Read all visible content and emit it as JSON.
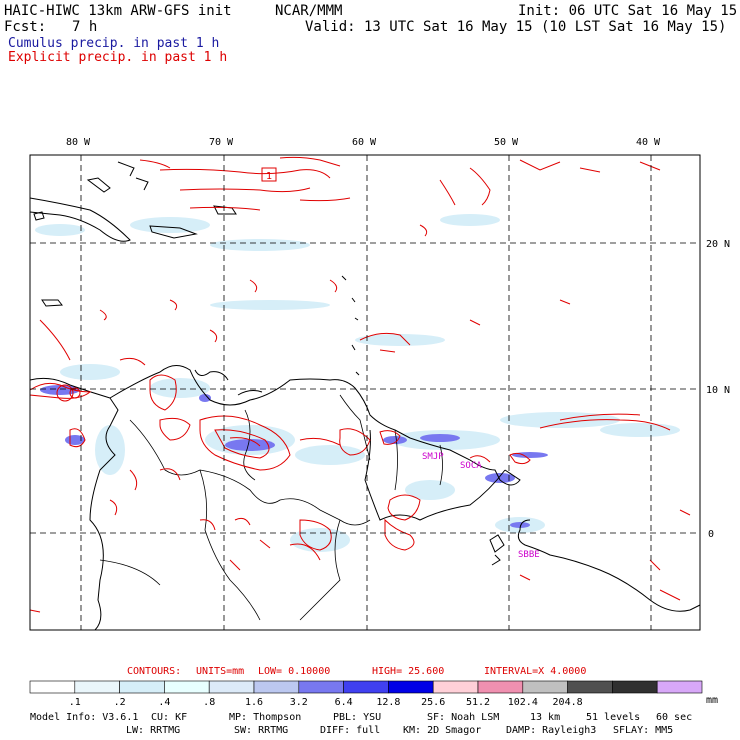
{
  "header": {
    "model_title": "HAIC-HIWC 13km ARW-GFS init",
    "org": "NCAR/MMM",
    "init": "Init: 06 UTC Sat 16 May 15",
    "fcst_label": "Fcst:",
    "fcst_value": "7 h",
    "valid": "Valid: 13 UTC Sat 16 May 15 (10 LST Sat 16 May 15)"
  },
  "legend": {
    "cumulus": "Cumulus precip. in past 1 h",
    "explicit": "Explicit precip. in past 1 h",
    "cumulus_color": "#1a1aa0",
    "explicit_color": "#dd0000"
  },
  "map": {
    "lon_labels": [
      "80 W",
      "70 W",
      "60 W",
      "50 W",
      "40 W"
    ],
    "lat_labels": [
      "20 N",
      "10 N",
      "0"
    ],
    "stations": [
      "SMJP",
      "SOCA",
      "SBBE"
    ],
    "box_label": "1",
    "station_color": "#cc00cc"
  },
  "contours": {
    "label": "CONTOURS:",
    "units": "UNITS=mm",
    "low": "LOW= 0.10000",
    "high": "HIGH= 25.600",
    "interval": "INTERVAL=X 4.0000"
  },
  "colorbar": {
    "labels": [
      ".1",
      ".2",
      ".4",
      ".8",
      "1.6",
      "3.2",
      "6.4",
      "12.8",
      "25.6",
      "51.2",
      "102.4",
      "204.8"
    ],
    "unit": "mm",
    "colors": [
      "#ffffff",
      "#eaf6fb",
      "#d6eef8",
      "#e8ffff",
      "#dceaf8",
      "#bcc8f0",
      "#7878f0",
      "#4040f0",
      "#0000e6",
      "#ffd0d8",
      "#f090b0",
      "#c0c0c0",
      "#505050",
      "#303030",
      "#d8a8f8"
    ]
  },
  "model_info": {
    "line1": [
      "Model Info: V3.6.1",
      "CU: KF",
      "MP: Thompson",
      "PBL: YSU",
      "SF: Noah LSM",
      "13 km",
      "51 levels",
      "60 sec"
    ],
    "line2": [
      "LW: RRTMG",
      "SW: RRTMG",
      "DIFF: full",
      "KM: 2D Smagor",
      "DAMP: Rayleigh3",
      "SFLAY: MM5"
    ]
  }
}
